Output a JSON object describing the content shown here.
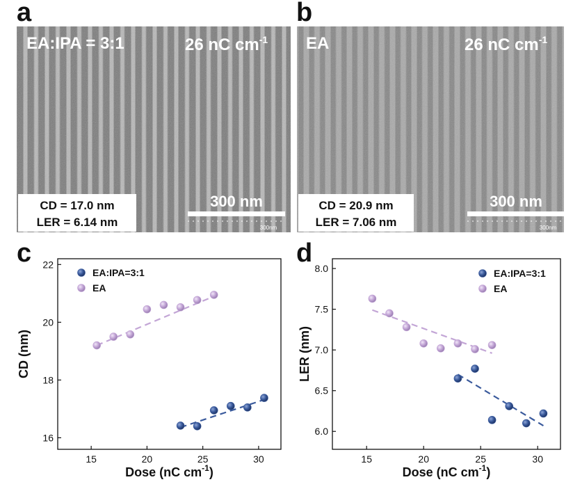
{
  "panels": {
    "a": {
      "letter": "a",
      "label": "EA:IPA = 3:1",
      "dose_main": "26 nC cm",
      "dose_sup": "-1",
      "cd": "CD = 17.0 nm",
      "ler": "LER = 6.14 nm",
      "scale": "300 nm",
      "scale_small": "300nm"
    },
    "b": {
      "letter": "b",
      "label": "EA",
      "dose_main": "26 nC cm",
      "dose_sup": "-1",
      "cd": "CD = 20.9 nm",
      "ler": "LER = 7.06 nm",
      "scale": "300 nm",
      "scale_small": "300nm"
    },
    "c": {
      "letter": "c"
    },
    "d": {
      "letter": "d"
    }
  },
  "colors": {
    "blue": "#3a5a9c",
    "blue_dark": "#1f3566",
    "purple": "#c3a6d6",
    "purple_dark": "#9b7fb3",
    "sem_bg": "#7d7d7d"
  },
  "chart_data": [
    {
      "type": "scatter",
      "panel": "c",
      "xlabel": "Dose (nC cm",
      "xlabel_sup": "-1",
      "xlabel_end": ")",
      "ylabel": "CD (nm)",
      "xlim": [
        12,
        32
      ],
      "ylim": [
        15.6,
        22.2
      ],
      "xticks": [
        15,
        20,
        25,
        30
      ],
      "yticks": [
        16,
        18,
        20,
        22
      ],
      "ytick_labels": [
        "16",
        "18",
        "20",
        "22"
      ],
      "legend_position": "top-left",
      "series": [
        {
          "name": "EA:IPA=3:1",
          "color": "#3a5a9c",
          "x": [
            23,
            24.5,
            26,
            27.5,
            29,
            30.5
          ],
          "y": [
            16.42,
            16.4,
            16.95,
            17.1,
            17.05,
            17.38
          ],
          "fit": [
            [
              23,
              16.36
            ],
            [
              30.5,
              17.32
            ]
          ]
        },
        {
          "name": "EA",
          "color": "#c3a6d6",
          "x": [
            15.5,
            17,
            18.5,
            20,
            21.5,
            23,
            24.5,
            26
          ],
          "y": [
            19.2,
            19.5,
            19.58,
            20.45,
            20.6,
            20.52,
            20.77,
            20.95
          ],
          "fit": [
            [
              15.5,
              19.2
            ],
            [
              26,
              20.9
            ]
          ]
        }
      ]
    },
    {
      "type": "scatter",
      "panel": "d",
      "xlabel": "Dose (nC cm",
      "xlabel_sup": "-1",
      "xlabel_end": ")",
      "ylabel": "LER (nm)",
      "xlim": [
        12,
        32
      ],
      "ylim": [
        5.78,
        8.12
      ],
      "xticks": [
        15,
        20,
        25,
        30
      ],
      "yticks": [
        6.0,
        6.5,
        7.0,
        7.5,
        8.0
      ],
      "ytick_labels": [
        "6.0",
        "6.5",
        "7.0",
        "7.5",
        "8.0"
      ],
      "legend_position": "top-right",
      "series": [
        {
          "name": "EA:IPA=3:1",
          "color": "#3a5a9c",
          "x": [
            23,
            24.5,
            26,
            27.5,
            29,
            30.5
          ],
          "y": [
            6.65,
            6.77,
            6.14,
            6.31,
            6.1,
            6.22
          ],
          "fit": [
            [
              23,
              6.7
            ],
            [
              30.5,
              6.07
            ]
          ]
        },
        {
          "name": "EA",
          "color": "#c3a6d6",
          "x": [
            15.5,
            17,
            18.5,
            20,
            21.5,
            23,
            24.5,
            26
          ],
          "y": [
            7.63,
            7.45,
            7.28,
            7.08,
            7.02,
            7.08,
            7.01,
            7.06
          ],
          "fit": [
            [
              15.5,
              7.49
            ],
            [
              26,
              6.96
            ]
          ]
        }
      ]
    }
  ]
}
